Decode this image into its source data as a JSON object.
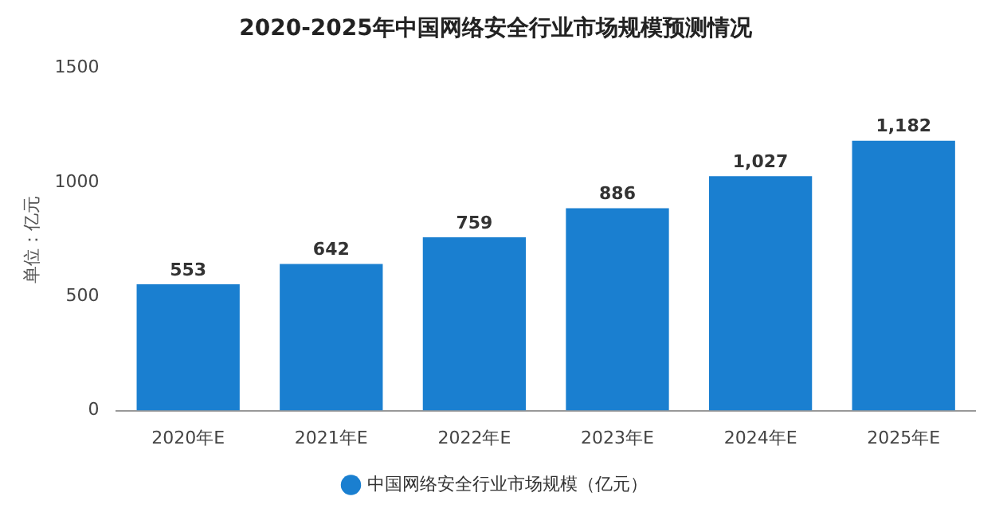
{
  "chart_data": {
    "type": "bar",
    "title": "2020-2025年中国网络安全行业市场规模预测情况",
    "ylabel": "单位：亿元",
    "categories": [
      "2020年E",
      "2021年E",
      "2022年E",
      "2023年E",
      "2024年E",
      "2025年E"
    ],
    "series": [
      {
        "name": "中国网络安全行业市场规模（亿元）",
        "color": "#1a7fd0",
        "values": [
          553,
          642,
          759,
          886,
          1027,
          1182
        ],
        "value_labels": [
          "553",
          "642",
          "759",
          "886",
          "1,027",
          "1,182"
        ]
      }
    ],
    "ylim": [
      0,
      1500
    ],
    "yticks": [
      0,
      500,
      1000,
      1500
    ],
    "grid": false,
    "legend": "bottom"
  }
}
